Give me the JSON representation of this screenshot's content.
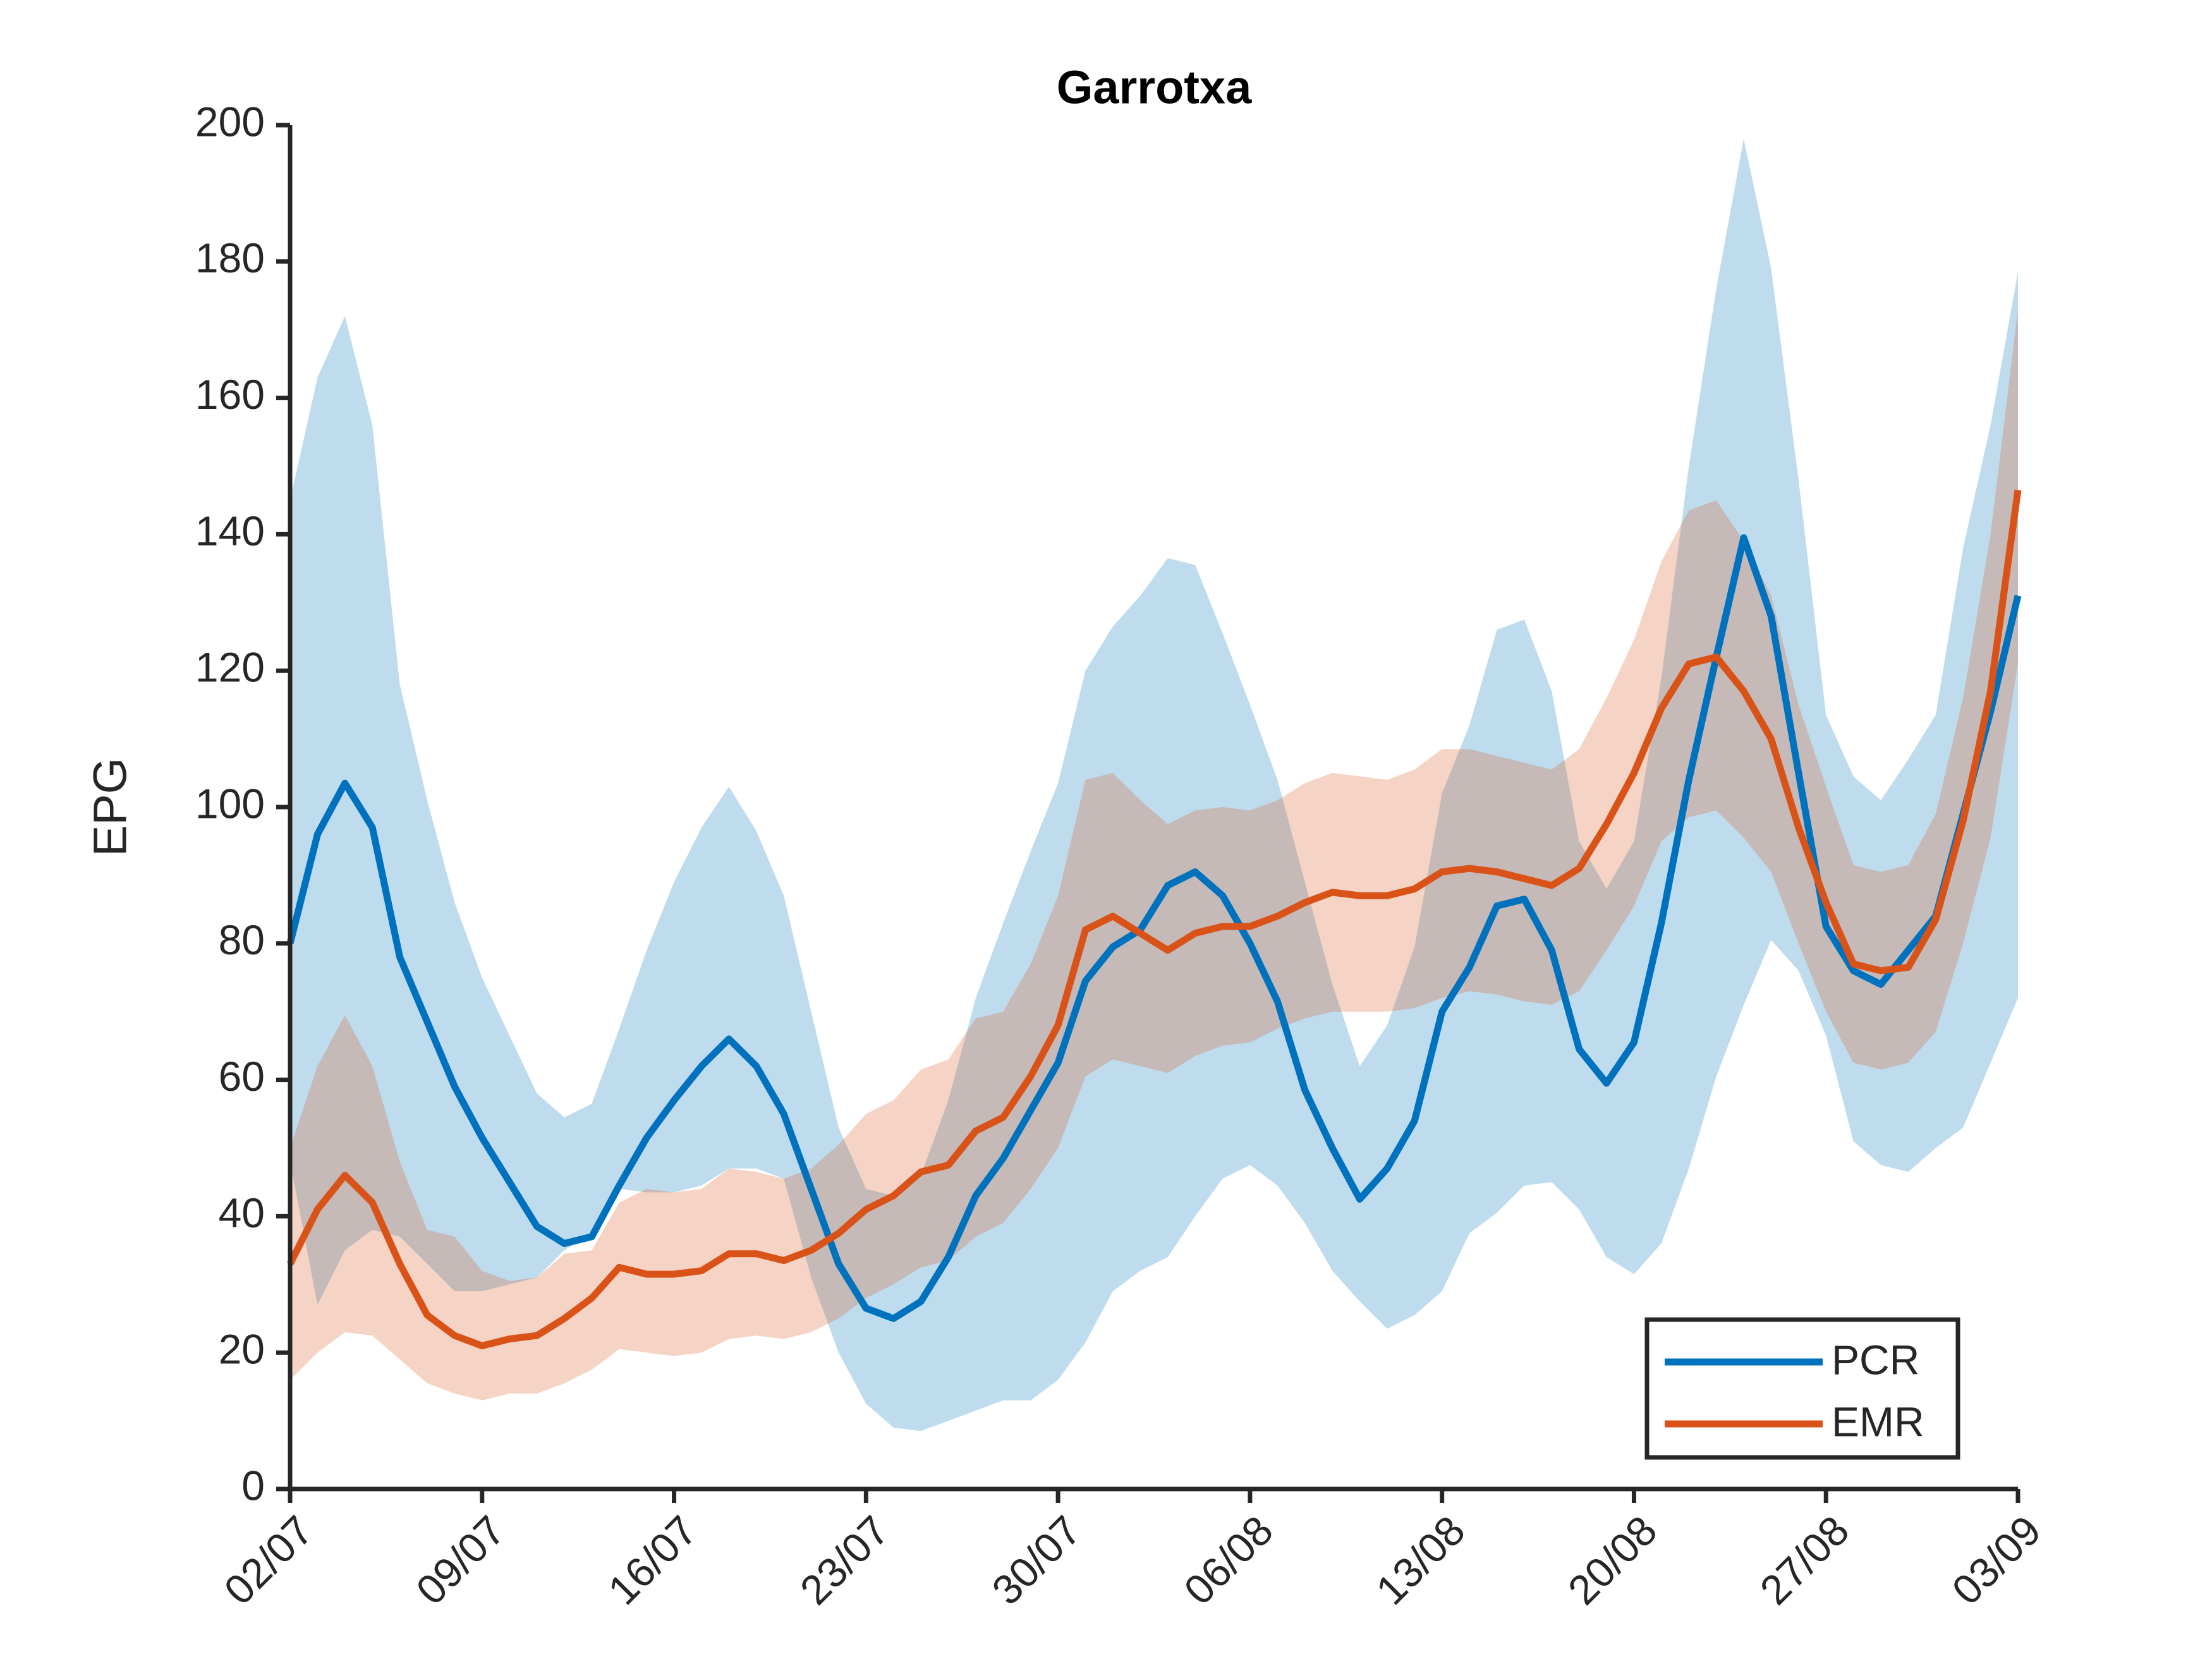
{
  "chart_data": {
    "type": "line",
    "title": "Garrotxa",
    "y_label": "EPG",
    "categories": [
      "02/07",
      null,
      null,
      null,
      null,
      null,
      null,
      "09/07",
      null,
      null,
      null,
      null,
      null,
      null,
      "16/07",
      null,
      null,
      null,
      null,
      null,
      null,
      "23/07",
      null,
      null,
      null,
      null,
      null,
      null,
      "30/07",
      null,
      null,
      null,
      null,
      null,
      null,
      "06/08",
      null,
      null,
      null,
      null,
      null,
      null,
      "13/08",
      null,
      null,
      null,
      null,
      null,
      null,
      "20/08",
      null,
      null,
      null,
      null,
      null,
      null,
      "27/08",
      null,
      null,
      null,
      null,
      null,
      null,
      "03/09"
    ],
    "ylim": [
      0,
      200
    ],
    "yticks": [
      0,
      20,
      40,
      60,
      80,
      100,
      120,
      140,
      160,
      180,
      200
    ],
    "legend": "southeast",
    "band_opacity": 0.25,
    "series": [
      {
        "name": "PCR",
        "color": "#0072bd",
        "values": [
          80,
          96,
          103.5,
          97,
          78,
          68.5,
          59,
          51.5,
          45,
          38.5,
          36,
          37,
          44.5,
          51.5,
          57,
          62,
          66,
          62,
          55,
          44,
          33,
          26.5,
          25,
          27.5,
          34,
          43,
          48.5,
          55.5,
          62.5,
          74.5,
          79.5,
          82,
          88.5,
          90.5,
          87,
          80,
          71.5,
          58.5,
          50,
          42.5,
          47,
          54,
          70,
          76.5,
          85.5,
          86.5,
          79,
          64.5,
          59.5,
          65.5,
          83,
          104,
          122,
          139.5,
          128,
          105,
          82.5,
          76,
          74,
          79,
          84,
          99,
          114,
          131
        ],
        "upper": [
          145,
          163,
          172,
          156,
          118,
          101,
          86,
          75,
          66.5,
          58,
          54.5,
          56.5,
          67.5,
          79,
          89,
          97,
          103,
          96.5,
          87,
          70,
          53,
          44,
          43,
          46,
          57,
          72,
          83,
          93.5,
          103.5,
          120,
          126.5,
          131,
          136.5,
          135.5,
          125.5,
          115,
          104,
          89,
          74,
          62,
          68,
          79.5,
          102,
          112,
          126,
          127.5,
          117,
          95,
          88,
          95,
          119,
          150,
          176,
          198,
          179,
          148,
          113.5,
          104.5,
          101,
          107,
          113.5,
          138,
          156,
          178.5
        ],
        "lower": [
          48,
          27,
          35,
          38,
          37,
          33,
          29,
          29,
          30,
          31,
          35,
          37.5,
          44,
          43.5,
          43.5,
          44.5,
          47,
          47,
          45.5,
          31,
          20,
          12.5,
          9,
          8.5,
          10,
          11.5,
          13,
          13,
          16,
          21.5,
          29,
          32,
          34,
          40,
          45.5,
          47.5,
          44.5,
          39,
          32,
          27.5,
          23.5,
          25.5,
          29,
          37.5,
          40.5,
          44.5,
          45,
          41,
          34,
          31.5,
          36,
          47,
          60.5,
          71,
          80.5,
          76,
          66.5,
          51,
          47.5,
          46.5,
          50,
          53,
          62.5,
          72
        ]
      },
      {
        "name": "EMR",
        "color": "#d95319",
        "values": [
          33,
          41,
          46,
          42,
          33,
          25.5,
          22.5,
          21,
          22,
          22.5,
          25,
          28,
          32.5,
          31.5,
          31.5,
          32,
          34.5,
          34.5,
          33.5,
          35,
          37.5,
          41,
          43,
          46.5,
          47.5,
          52.5,
          54.5,
          60.5,
          68,
          82,
          84,
          81.5,
          79,
          81.5,
          82.5,
          82.5,
          84,
          86,
          87.5,
          87,
          87,
          88,
          90.5,
          91,
          90.5,
          89.5,
          88.5,
          91,
          97.5,
          105,
          114.5,
          121,
          122,
          117,
          110,
          97,
          86,
          77,
          76,
          76.5,
          83.5,
          98,
          117,
          146.5
        ],
        "upper": [
          50,
          62,
          69.5,
          62,
          48,
          38,
          37,
          32,
          30.5,
          31,
          34.5,
          35,
          42,
          44,
          43.5,
          44,
          47,
          46.5,
          45.5,
          47,
          50.5,
          55,
          57,
          61.5,
          63,
          69,
          70,
          77,
          87,
          104,
          105,
          101,
          97.5,
          99.5,
          100,
          99.5,
          101,
          103.5,
          105,
          104.5,
          104,
          105.5,
          108.5,
          108.5,
          107.5,
          106.5,
          105.5,
          108.5,
          116,
          124.5,
          136,
          143.5,
          145,
          139,
          131,
          115,
          103,
          91.5,
          90.5,
          91.5,
          99,
          116,
          140,
          173
        ],
        "lower": [
          16,
          20,
          23,
          22.5,
          19,
          15.5,
          14,
          13,
          14,
          14,
          15.5,
          17.5,
          20.5,
          20,
          19.5,
          20,
          22,
          22.5,
          22,
          23,
          25,
          28,
          30,
          32.5,
          33.5,
          37,
          39,
          44,
          50,
          60.5,
          63,
          62,
          61,
          63.5,
          65,
          65.5,
          67.5,
          69,
          70,
          70,
          70,
          70.5,
          72,
          73,
          72.5,
          71.5,
          71,
          73,
          79,
          85.5,
          95,
          98.5,
          99.5,
          95.5,
          90.5,
          80,
          70,
          62.5,
          61.5,
          62.5,
          67,
          80,
          95.5,
          121
        ]
      }
    ]
  }
}
